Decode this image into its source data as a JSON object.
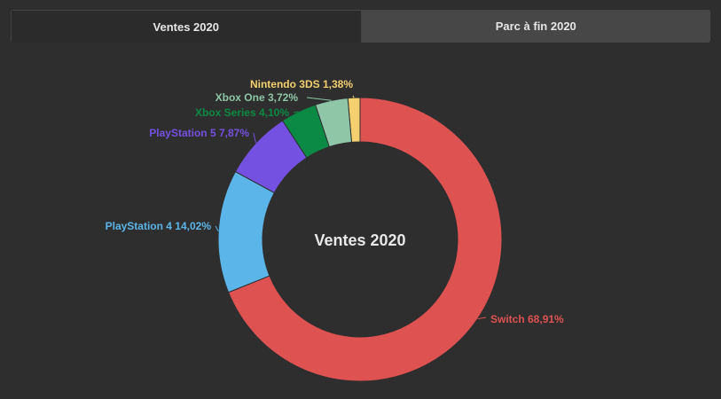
{
  "tabs": [
    {
      "label": "Ventes 2020",
      "active": true
    },
    {
      "label": "Parc à fin 2020",
      "active": false
    }
  ],
  "chart_data": {
    "type": "pie",
    "subtype": "donut",
    "center_title": "Ventes 2020",
    "slices": [
      {
        "name": "Nintendo 3DS",
        "value": 1.38,
        "label": "Nintendo 3DS 1,38%",
        "color": "#f4d06f"
      },
      {
        "name": "Switch",
        "value": 68.91,
        "label": "Switch 68,91%",
        "color": "#de5252"
      },
      {
        "name": "PlayStation 4",
        "value": 14.02,
        "label": "PlayStation 4 14,02%",
        "color": "#5bb5e8"
      },
      {
        "name": "PlayStation 5",
        "value": 7.87,
        "label": "PlayStation 5 7,87%",
        "color": "#7451e0"
      },
      {
        "name": "Xbox Series",
        "value": 4.1,
        "label": "Xbox Series 4,10%",
        "color": "#0a8a44"
      },
      {
        "name": "Xbox One",
        "value": 3.72,
        "label": "Xbox One 3,72%",
        "color": "#8fc6a8"
      }
    ]
  }
}
